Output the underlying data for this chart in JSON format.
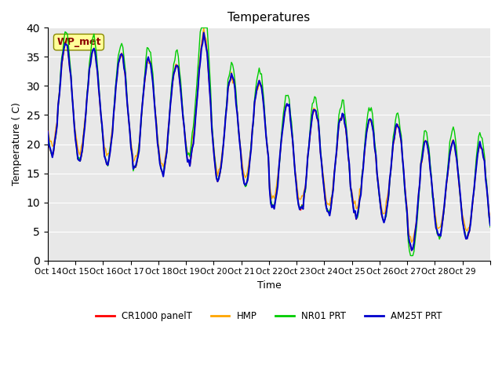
{
  "title": "Temperatures",
  "xlabel": "Time",
  "ylabel": "Temperature ( C)",
  "ylim": [
    0,
    40
  ],
  "yticks": [
    0,
    5,
    10,
    15,
    20,
    25,
    30,
    35,
    40
  ],
  "xtick_labels": [
    "Oct 14",
    "Oct 15",
    "Oct 16",
    "Oct 17",
    "Oct 18",
    "Oct 19",
    "Oct 20",
    "Oct 21",
    "Oct 22",
    "Oct 23",
    "Oct 24",
    "Oct 25",
    "Oct 26",
    "Oct 27",
    "Oct 28",
    "Oct 29"
  ],
  "annotation_text": "WP_met",
  "annotation_color": "#8B0000",
  "annotation_bg": "#FFFF99",
  "bg_color": "#E8E8E8",
  "line_colors": {
    "CR1000": "#FF0000",
    "HMP": "#FFA500",
    "NR01": "#00CC00",
    "AM25T": "#0000CC"
  },
  "legend_labels": [
    "CR1000 panelT",
    "HMP",
    "NR01 PRT",
    "AM25T PRT"
  ]
}
